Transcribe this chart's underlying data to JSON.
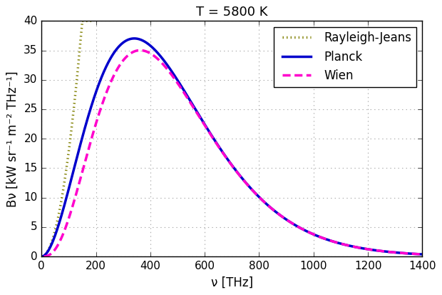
{
  "title": "T = 5800 K",
  "xlabel": "ν [THz]",
  "ylabel": "Bν [kW sr⁻¹ m⁻² THz⁻¹]",
  "T": 5800,
  "xlim": [
    0,
    1400
  ],
  "ylim": [
    0,
    40
  ],
  "xticks": [
    0,
    200,
    400,
    600,
    800,
    1000,
    1200,
    1400
  ],
  "yticks": [
    0,
    5,
    10,
    15,
    20,
    25,
    30,
    35,
    40
  ],
  "planck_color": "#0000CC",
  "wien_color": "#FF00CC",
  "rj_color": "#808000",
  "planck_lw": 2.5,
  "wien_lw": 2.5,
  "rj_lw": 2.5,
  "legend_labels": [
    "Rayleigh-Jeans",
    "Planck",
    "Wien"
  ],
  "figsize": [
    6.2,
    4.13
  ],
  "dpi": 100,
  "title_fontsize": 13,
  "label_fontsize": 12,
  "tick_fontsize": 11,
  "legend_fontsize": 12,
  "grid_color": "#aaaaaa",
  "grid_linestyle": ":",
  "grid_alpha": 1.0
}
